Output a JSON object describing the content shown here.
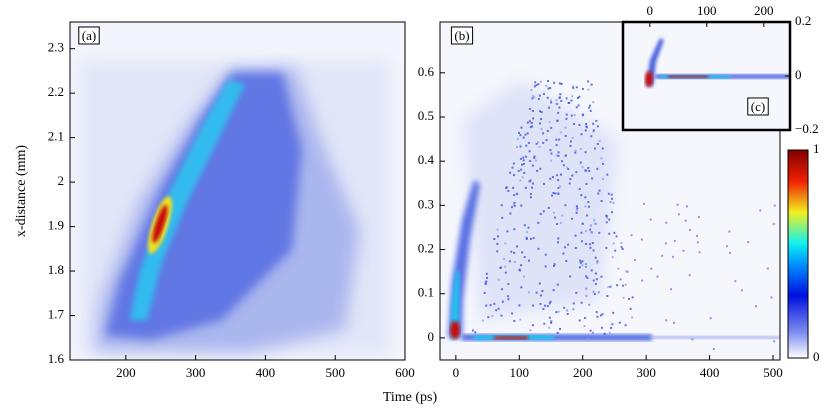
{
  "chart_data": [
    {
      "type": "heatmap",
      "panel_label": "(a)",
      "ylabel": "x-distance (mm)",
      "xlim": [
        120,
        600
      ],
      "xticks": [
        200,
        300,
        400,
        500,
        600
      ],
      "ylim": [
        1.6,
        2.36
      ],
      "yticks": [
        1.6,
        1.7,
        1.8,
        1.9,
        2,
        2.1,
        2.2,
        2.3
      ]
    },
    {
      "type": "heatmap",
      "panel_label": "(b)",
      "xlabel": "Time (ps)",
      "xlim": [
        -25,
        511
      ],
      "xticks": [
        0,
        100,
        200,
        300,
        400,
        500
      ],
      "ylim": [
        -0.05,
        0.715
      ],
      "yticks": [
        0,
        0.1,
        0.2,
        0.3,
        0.4,
        0.5,
        0.6
      ]
    },
    {
      "type": "heatmap",
      "panel_label": "(c)",
      "xlim": [
        -47,
        246
      ],
      "xticks": [
        0,
        100,
        200
      ],
      "ylim": [
        -0.2,
        0.2
      ],
      "yticks": [
        {
          "value": -0.2,
          "label": "−0.2"
        },
        0,
        0.2
      ]
    },
    {
      "type": "colorbar",
      "ylim": [
        0,
        1
      ],
      "yticks": [
        0,
        1
      ]
    }
  ]
}
